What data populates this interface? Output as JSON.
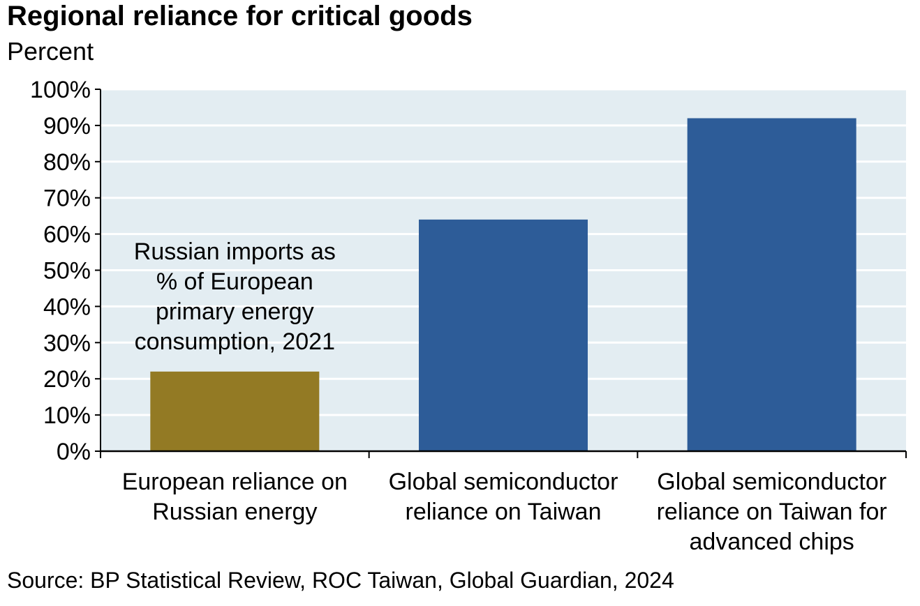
{
  "title": "Regional reliance for critical goods",
  "subtitle": "Percent",
  "source": "Source: BP Statistical Review, ROC Taiwan, Global Guardian, 2024",
  "colors": {
    "plot_background": "#e3edf2",
    "gridline": "#ffffff",
    "european_bar": "#937a24",
    "semiconductor_bar": "#2d5c98",
    "axis": "#000000"
  },
  "chart_data": {
    "type": "bar",
    "title": "Regional reliance for critical goods",
    "ylabel": "Percent",
    "xlabel": "",
    "ylim": [
      0,
      100
    ],
    "yticks": [
      0,
      10,
      20,
      30,
      40,
      50,
      60,
      70,
      80,
      90,
      100
    ],
    "ytick_labels": [
      "0%",
      "10%",
      "20%",
      "30%",
      "40%",
      "50%",
      "60%",
      "70%",
      "80%",
      "90%",
      "100%"
    ],
    "grid": true,
    "categories": [
      [
        "European reliance on",
        "Russian energy"
      ],
      [
        "Global semiconductor",
        "reliance on Taiwan"
      ],
      [
        "Global semiconductor",
        "reliance on Taiwan for",
        "advanced chips"
      ]
    ],
    "values": [
      22,
      64,
      92
    ],
    "bar_colors": [
      "#937a24",
      "#2d5c98",
      "#2d5c98"
    ],
    "annotations": [
      {
        "category_index": 0,
        "lines": [
          "Russian imports as",
          "% of European",
          "primary energy",
          "consumption, 2021"
        ]
      }
    ]
  }
}
